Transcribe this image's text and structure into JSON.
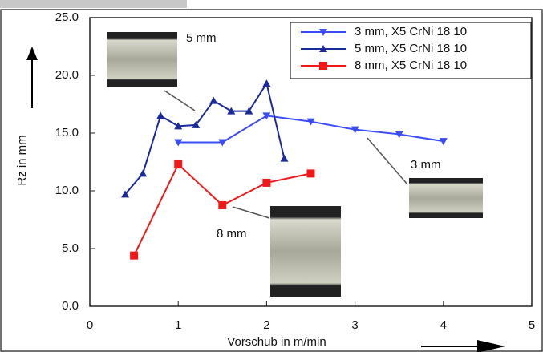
{
  "chart_data": {
    "type": "line",
    "xlabel": "Vorschub in m/min",
    "ylabel": "Rz in mm",
    "xlim": [
      0,
      5
    ],
    "xticks": [
      0,
      1,
      2,
      3,
      4,
      5
    ],
    "ylim": [
      0,
      25
    ],
    "yticks": [
      {
        "value": 0,
        "label": "0.0"
      },
      {
        "value": 5,
        "label": "5.0"
      },
      {
        "value": 10,
        "label": "10.0"
      },
      {
        "value": 15,
        "label": "15.0"
      },
      {
        "value": 20,
        "label": "20.0"
      },
      {
        "value": 25,
        "label": "25.0"
      }
    ],
    "legend": "upper right",
    "annotations": [
      "5 mm",
      "3 mm",
      "8 mm"
    ],
    "series": [
      {
        "name": "3 mm, X5 CrNi 18 10",
        "color": "#3a4cf5",
        "marker": "triangle-down",
        "x": [
          1,
          1.5,
          2,
          2.5,
          3,
          3.5,
          4
        ],
        "values": [
          14.2,
          14.2,
          16.5,
          16.0,
          15.3,
          14.9,
          14.3
        ]
      },
      {
        "name": "5 mm, X5 CrNi 18 10",
        "color": "#1a2a9a",
        "marker": "triangle-up",
        "x": [
          0.4,
          0.6,
          0.8,
          1.0,
          1.2,
          1.4,
          1.6,
          1.8,
          2.0,
          2.2
        ],
        "values": [
          9.7,
          11.5,
          16.5,
          15.6,
          15.7,
          17.8,
          16.9,
          16.9,
          19.3,
          12.8
        ]
      },
      {
        "name": "8 mm, X5 CrNi 18 10",
        "color": "#f01818",
        "marker": "square",
        "x": [
          0.5,
          1.0,
          1.5,
          2.0,
          2.5
        ],
        "values": [
          4.4,
          12.3,
          8.75,
          10.7,
          11.5
        ]
      }
    ]
  }
}
